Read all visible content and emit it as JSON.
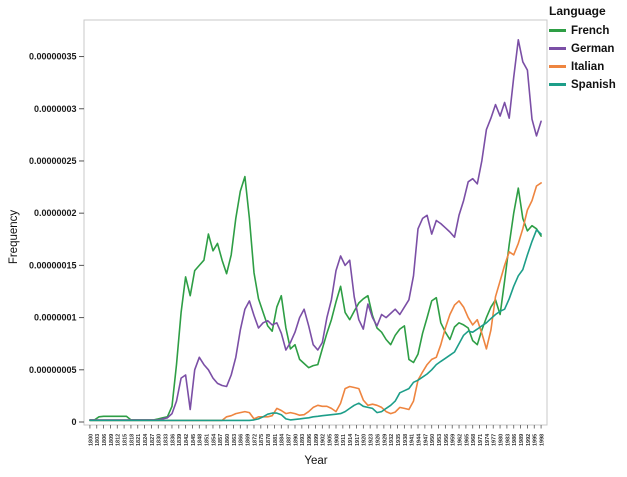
{
  "chart_data": {
    "type": "line",
    "title": "",
    "xlabel": "Year",
    "ylabel": "Frequency",
    "legend_title": "Language",
    "legend_position": "top-right-outside",
    "grid": false,
    "x_range": [
      1797.4,
      2000.6
    ],
    "y_range": [
      0,
      3.85e-07
    ],
    "value_scale": 1e-07,
    "x_start": 1800,
    "x_step": 2,
    "y_ticks": [
      "0",
      "0.00000005",
      "0.0000001",
      "0.00000015",
      "0.0000002",
      "0.00000025",
      "0.0000003",
      "0.00000035"
    ],
    "x_ticks": [
      "1800",
      "1803",
      "1806",
      "1809",
      "1812",
      "1815",
      "1818",
      "1821",
      "1824",
      "1827",
      "1830",
      "1833",
      "1836",
      "1839",
      "1842",
      "1845",
      "1848",
      "1851",
      "1854",
      "1857",
      "1860",
      "1863",
      "1866",
      "1869",
      "1872",
      "1875",
      "1878",
      "1881",
      "1884",
      "1887",
      "1890",
      "1893",
      "1896",
      "1899",
      "1902",
      "1905",
      "1908",
      "1911",
      "1914",
      "1917",
      "1920",
      "1923",
      "1926",
      "1929",
      "1932",
      "1935",
      "1938",
      "1941",
      "1944",
      "1947",
      "1950",
      "1953",
      "1956",
      "1959",
      "1962",
      "1965",
      "1968",
      "1971",
      "1974",
      "1977",
      "1980",
      "1983",
      "1986",
      "1989",
      "1992",
      "1995",
      "1998"
    ],
    "series": [
      {
        "name": "French",
        "color": "#2e9e45",
        "values": [
          0.02,
          0.02,
          0.05,
          0.055,
          0.055,
          0.055,
          0.055,
          0.055,
          0.055,
          0.02,
          0.02,
          0.02,
          0.02,
          0.02,
          0.02,
          0.03,
          0.04,
          0.05,
          0.15,
          0.55,
          1.05,
          1.39,
          1.21,
          1.45,
          1.5,
          1.55,
          1.8,
          1.64,
          1.71,
          1.55,
          1.42,
          1.6,
          1.95,
          2.21,
          2.35,
          1.95,
          1.43,
          1.18,
          1.05,
          0.92,
          0.87,
          1.1,
          1.21,
          0.9,
          0.7,
          0.74,
          0.6,
          0.56,
          0.52,
          0.54,
          0.55,
          0.7,
          0.85,
          0.98,
          1.15,
          1.3,
          1.05,
          0.98,
          1.06,
          1.14,
          1.18,
          1.21,
          1.02,
          0.9,
          0.86,
          0.79,
          0.74,
          0.83,
          0.89,
          0.92,
          0.6,
          0.57,
          0.65,
          0.85,
          1.0,
          1.16,
          1.19,
          0.95,
          0.86,
          0.79,
          0.91,
          0.95,
          0.93,
          0.9,
          0.78,
          0.74,
          0.88,
          1.0,
          1.1,
          1.17,
          1.03,
          1.35,
          1.7,
          2.0,
          2.24,
          1.95,
          1.83,
          1.88,
          1.85,
          1.78
        ]
      },
      {
        "name": "German",
        "color": "#7b4fa6",
        "values": [
          0.02,
          0.02,
          0.02,
          0.02,
          0.02,
          0.02,
          0.02,
          0.02,
          0.02,
          0.02,
          0.02,
          0.02,
          0.02,
          0.02,
          0.02,
          0.02,
          0.03,
          0.04,
          0.08,
          0.2,
          0.42,
          0.45,
          0.12,
          0.5,
          0.62,
          0.55,
          0.5,
          0.42,
          0.37,
          0.35,
          0.34,
          0.45,
          0.62,
          0.88,
          1.08,
          1.16,
          1.02,
          0.9,
          0.95,
          0.97,
          0.93,
          0.95,
          0.85,
          0.69,
          0.76,
          0.86,
          1.0,
          1.08,
          0.92,
          0.74,
          0.69,
          0.76,
          1.0,
          1.17,
          1.45,
          1.59,
          1.5,
          1.55,
          1.2,
          0.98,
          0.89,
          1.13,
          1.0,
          0.92,
          1.03,
          1.0,
          1.04,
          1.08,
          1.03,
          1.1,
          1.17,
          1.4,
          1.85,
          1.95,
          1.98,
          1.8,
          1.93,
          1.9,
          1.86,
          1.82,
          1.77,
          1.98,
          2.12,
          2.3,
          2.33,
          2.28,
          2.5,
          2.8,
          2.91,
          3.04,
          2.93,
          3.06,
          2.91,
          3.3,
          3.66,
          3.45,
          3.37,
          2.9,
          2.74,
          2.88
        ]
      },
      {
        "name": "Italian",
        "color": "#ee8540",
        "values": [
          0.015,
          0.015,
          0.015,
          0.015,
          0.015,
          0.015,
          0.015,
          0.015,
          0.015,
          0.015,
          0.015,
          0.015,
          0.015,
          0.015,
          0.015,
          0.015,
          0.015,
          0.015,
          0.015,
          0.015,
          0.015,
          0.015,
          0.015,
          0.015,
          0.015,
          0.015,
          0.015,
          0.015,
          0.015,
          0.015,
          0.05,
          0.06,
          0.08,
          0.09,
          0.1,
          0.09,
          0.03,
          0.05,
          0.05,
          0.05,
          0.06,
          0.13,
          0.11,
          0.08,
          0.09,
          0.08,
          0.065,
          0.07,
          0.1,
          0.14,
          0.16,
          0.15,
          0.15,
          0.13,
          0.1,
          0.18,
          0.32,
          0.34,
          0.33,
          0.32,
          0.21,
          0.16,
          0.17,
          0.16,
          0.14,
          0.1,
          0.08,
          0.095,
          0.14,
          0.13,
          0.12,
          0.2,
          0.4,
          0.48,
          0.55,
          0.6,
          0.62,
          0.74,
          0.9,
          1.03,
          1.12,
          1.16,
          1.1,
          1.0,
          0.93,
          0.98,
          0.85,
          0.7,
          0.88,
          1.2,
          1.35,
          1.5,
          1.63,
          1.6,
          1.71,
          1.85,
          2.03,
          2.12,
          2.26,
          2.29
        ]
      },
      {
        "name": "Spanish",
        "color": "#1d9e89",
        "values": [
          0.015,
          0.015,
          0.015,
          0.015,
          0.015,
          0.015,
          0.015,
          0.015,
          0.015,
          0.015,
          0.015,
          0.015,
          0.015,
          0.015,
          0.015,
          0.015,
          0.015,
          0.015,
          0.015,
          0.015,
          0.015,
          0.015,
          0.015,
          0.015,
          0.015,
          0.015,
          0.015,
          0.015,
          0.015,
          0.015,
          0.015,
          0.015,
          0.015,
          0.015,
          0.015,
          0.015,
          0.02,
          0.03,
          0.05,
          0.075,
          0.085,
          0.085,
          0.07,
          0.03,
          0.02,
          0.025,
          0.03,
          0.035,
          0.04,
          0.05,
          0.055,
          0.06,
          0.065,
          0.07,
          0.075,
          0.08,
          0.1,
          0.13,
          0.16,
          0.18,
          0.15,
          0.14,
          0.13,
          0.09,
          0.1,
          0.13,
          0.16,
          0.2,
          0.28,
          0.3,
          0.32,
          0.38,
          0.4,
          0.43,
          0.46,
          0.5,
          0.55,
          0.58,
          0.61,
          0.64,
          0.67,
          0.75,
          0.83,
          0.87,
          0.86,
          0.89,
          0.92,
          0.95,
          0.99,
          1.03,
          1.06,
          1.08,
          1.18,
          1.3,
          1.4,
          1.46,
          1.6,
          1.73,
          1.84,
          1.8
        ]
      }
    ]
  }
}
